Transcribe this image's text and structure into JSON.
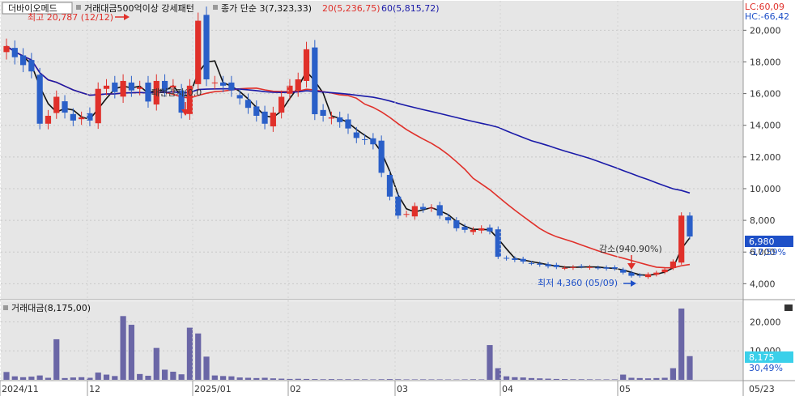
{
  "header": {
    "stock_name": "더바이오메드",
    "indicator_label": "거래대금500억이상 강세패턴",
    "ma3_label": "종가 단순 3(7,323,33)",
    "ma20_label": "20(5,236,75)",
    "ma60_label": "60(5,815,72)",
    "lc_label": "LC:60,09",
    "hc_label": "HC:-66,42"
  },
  "colors": {
    "up": "#e0302a",
    "down": "#2a5fc8",
    "ma3": "#111111",
    "ma20": "#e0302a",
    "ma60": "#1a1aa8",
    "volume": "#6a66a6",
    "price_badge": "#1e50c8",
    "volume_badge": "#3ad0ea",
    "panel_bg": "#e6e6e6"
  },
  "chart_data": {
    "type": "candlestick",
    "x_labels": [
      "2024/11",
      "12",
      "2025/01",
      "02",
      "03",
      "04",
      "05",
      "05/23"
    ],
    "price_axis": {
      "ticks": [
        "20,000",
        "18,000",
        "16,000",
        "14,000",
        "12,000",
        "10,000",
        "8,000",
        "6,000",
        "4,000"
      ],
      "ylim": [
        3200,
        21500
      ],
      "current_price": "6,980",
      "current_change": "-17,59%"
    },
    "volume_axis": {
      "title": "거래대금(8,175,00)",
      "ticks": [
        "20,000",
        "10,000"
      ],
      "current_value": "8,175",
      "current_change": "30,49%"
    },
    "annotations": {
      "high": "최고 20,787 (12/12)",
      "low": "최저 4,360 (05/09)",
      "mid": "패턴감지(0.0",
      "drop": "감소(940.90%)"
    },
    "anchors": {
      "close": [
        19000,
        18300,
        17800,
        17400,
        14100,
        14600,
        15800,
        14800,
        14300,
        14500,
        14300,
        16300,
        16500,
        16100,
        16800,
        16200,
        16400,
        15500,
        16800,
        16200,
        16500,
        14800,
        16500,
        20600,
        16900,
        16700,
        16500,
        16200,
        15700,
        15100,
        14600,
        14100,
        14800,
        15800,
        16500,
        16900,
        18800,
        14700,
        14600,
        14500,
        14200,
        13800,
        13200,
        13100,
        12800,
        11000,
        9500,
        8300,
        8400,
        8900,
        8700,
        8800,
        8300,
        8000,
        7500,
        7400,
        7400,
        7500,
        7300,
        5700,
        5600,
        5500,
        5400,
        5300,
        5200,
        5100,
        5050,
        5000,
        5050,
        5100,
        5050,
        5000,
        4950,
        4950,
        4700,
        4500,
        4500,
        4600,
        4700,
        4900,
        5400,
        8300,
        6980
      ],
      "volume": [
        2700,
        1200,
        900,
        1100,
        1500,
        700,
        14000,
        600,
        800,
        900,
        700,
        2500,
        1800,
        1300,
        22000,
        19000,
        2000,
        1400,
        11000,
        3500,
        2800,
        1900,
        18000,
        16000,
        8000,
        1500,
        1300,
        1200,
        800,
        700,
        600,
        700,
        500,
        400,
        300,
        350,
        300,
        250,
        200,
        250,
        200,
        200,
        200,
        180,
        150,
        200,
        250,
        200,
        150,
        150,
        170,
        150,
        150,
        130,
        120,
        150,
        200,
        150,
        12000,
        4000,
        1200,
        900,
        800,
        600,
        500,
        400,
        300,
        250,
        200,
        200,
        180,
        150,
        150,
        150,
        1800,
        700,
        600,
        500,
        600,
        700,
        4000,
        24600,
        8175
      ]
    }
  }
}
